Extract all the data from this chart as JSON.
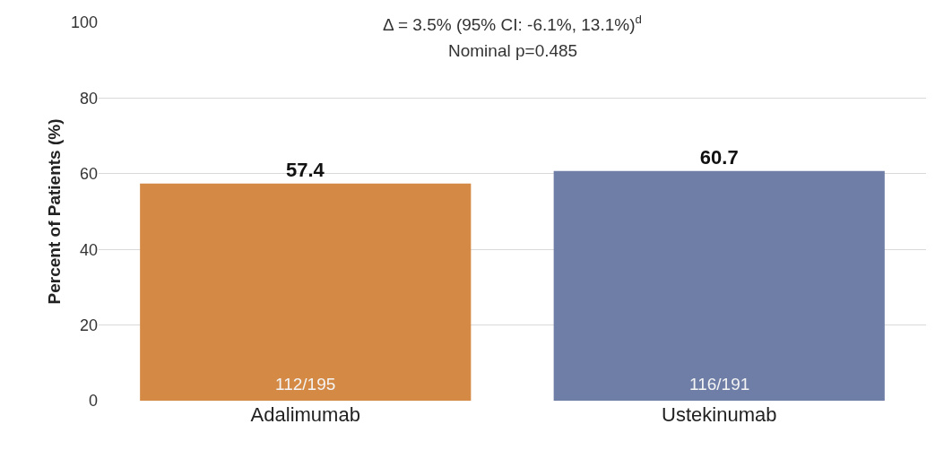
{
  "chart_data": {
    "type": "bar",
    "ylabel": "Percent of Patients (%)",
    "categories": [
      "Adalimumab",
      "Ustekinumab"
    ],
    "values": [
      57.4,
      60.7
    ],
    "colors": [
      "#d48a45",
      "#6e7ea6"
    ],
    "data_labels": true,
    "ylim": [
      0,
      100
    ],
    "yticks": [
      0,
      20,
      40,
      60,
      80,
      100
    ],
    "grid": "y",
    "annotations": [
      "Δ = 3.5% (95% CI: -6.1%, 13.1%)$^{d}$",
      "Nominal p=0.485",
      "112/195",
      "116/191"
    ]
  }
}
